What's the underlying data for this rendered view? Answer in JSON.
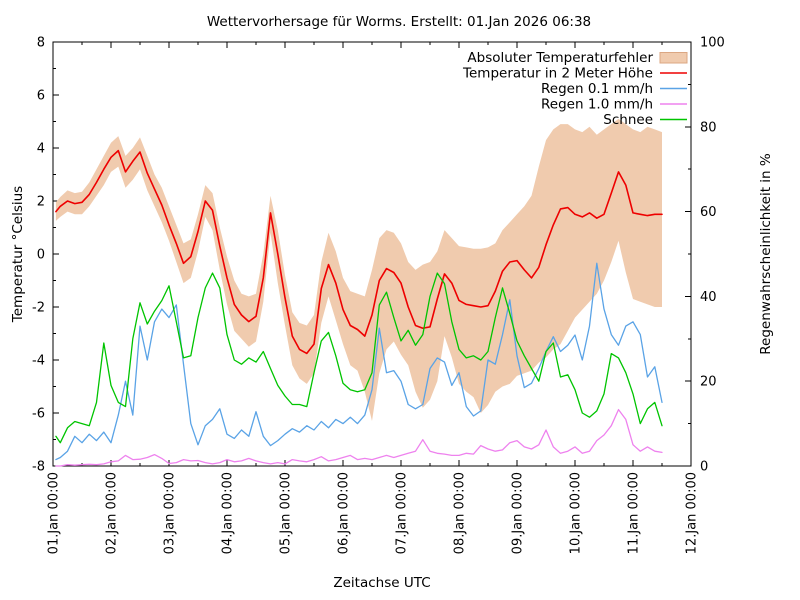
{
  "title": "Wettervorhersage für Worms. Erstellt: 01.Jan 2026 06:38",
  "chart_data": {
    "type": "line",
    "title": "Wettervorhersage für Worms. Erstellt: 01.Jan 2026 06:38",
    "xlabel": "Zeitachse UTC",
    "ylabel_left": "Temperatur °Celsius",
    "ylabel_right": "Regenwahrscheinlichkeit in %",
    "grid": false,
    "legend_position": "top-right-inside",
    "x_range_days": [
      0,
      11
    ],
    "x_tick_labels": [
      "01.Jan 00:00",
      "02.Jan 00:00",
      "03.Jan 00:00",
      "04.Jan 00:00",
      "05.Jan 00:00",
      "06.Jan 00:00",
      "07.Jan 00:00",
      "08.Jan 00:00",
      "09.Jan 00:00",
      "10.Jan 00:00",
      "11.Jan 00:00",
      "12.Jan 00:00"
    ],
    "x_minor_step_days": 0.5,
    "y_left_range": [
      -8,
      8
    ],
    "y_left_ticks": [
      -8,
      -6,
      -4,
      -2,
      0,
      2,
      4,
      6,
      8
    ],
    "y_left_minor_step": 1,
    "y_right_range": [
      0,
      100
    ],
    "y_right_ticks": [
      0,
      20,
      40,
      60,
      80,
      100
    ],
    "y_right_minor_step": 10,
    "x_days": [
      0.05,
      0.125,
      0.25,
      0.375,
      0.5,
      0.625,
      0.75,
      0.875,
      1,
      1.125,
      1.25,
      1.375,
      1.5,
      1.625,
      1.75,
      1.875,
      2,
      2.125,
      2.25,
      2.375,
      2.5,
      2.625,
      2.75,
      2.875,
      3,
      3.125,
      3.25,
      3.375,
      3.5,
      3.625,
      3.75,
      3.875,
      4,
      4.125,
      4.25,
      4.375,
      4.5,
      4.625,
      4.75,
      4.875,
      5,
      5.125,
      5.25,
      5.375,
      5.5,
      5.625,
      5.75,
      5.875,
      6,
      6.125,
      6.25,
      6.375,
      6.5,
      6.625,
      6.75,
      6.875,
      7,
      7.125,
      7.25,
      7.375,
      7.5,
      7.625,
      7.75,
      7.875,
      8,
      8.125,
      8.25,
      8.375,
      8.5,
      8.625,
      8.75,
      8.875,
      9,
      9.125,
      9.25,
      9.375,
      9.5,
      9.625,
      9.75,
      9.875,
      10,
      10.125,
      10.25,
      10.375,
      10.5
    ],
    "series": [
      {
        "name": "Absoluter Temperaturfehler",
        "kind": "band",
        "axis": "left",
        "color": "#f0cbae",
        "border_color": "#dba783",
        "upper": [
          1.95,
          2.15,
          2.4,
          2.3,
          2.35,
          2.7,
          3.2,
          3.7,
          4.2,
          4.45,
          3.7,
          4.0,
          4.4,
          3.7,
          3.0,
          2.5,
          1.8,
          1.1,
          0.4,
          0.55,
          1.5,
          2.6,
          2.3,
          1.0,
          -0.1,
          -1.0,
          -1.5,
          -1.6,
          -1.5,
          0.0,
          2.2,
          0.9,
          -0.8,
          -2.2,
          -2.6,
          -2.7,
          -2.3,
          -0.3,
          0.8,
          0.1,
          -0.9,
          -1.4,
          -1.5,
          -1.6,
          -0.6,
          0.6,
          0.9,
          0.8,
          0.4,
          -0.3,
          -0.6,
          -0.4,
          -0.3,
          0.1,
          0.9,
          0.6,
          0.3,
          0.25,
          0.2,
          0.2,
          0.25,
          0.4,
          0.9,
          1.2,
          1.5,
          1.8,
          2.2,
          3.3,
          4.3,
          4.7,
          4.9,
          4.9,
          4.7,
          4.6,
          4.8,
          4.5,
          4.7,
          4.9,
          5.1,
          4.9,
          4.7,
          4.6,
          4.8,
          4.7,
          4.6
        ],
        "lower": [
          1.25,
          1.4,
          1.6,
          1.5,
          1.5,
          1.8,
          2.2,
          2.6,
          3.1,
          3.3,
          2.5,
          2.8,
          3.2,
          2.4,
          1.8,
          1.2,
          0.5,
          -0.3,
          -1.1,
          -0.9,
          0.1,
          1.4,
          0.9,
          -0.6,
          -1.9,
          -2.9,
          -3.2,
          -3.5,
          -3.3,
          -1.8,
          0.8,
          -1.1,
          -2.7,
          -4.2,
          -4.7,
          -4.9,
          -4.5,
          -2.6,
          -1.6,
          -2.5,
          -3.4,
          -4.2,
          -4.4,
          -5.2,
          -6.3,
          -4.5,
          -3.6,
          -3.3,
          -3.8,
          -4.2,
          -5.2,
          -5.8,
          -5.5,
          -4.8,
          -3.1,
          -3.9,
          -4.9,
          -5.2,
          -5.4,
          -6.0,
          -5.7,
          -5.2,
          -5.0,
          -4.9,
          -4.6,
          -4.5,
          -4.4,
          -4.1,
          -3.9,
          -3.6,
          -3.4,
          -2.9,
          -2.4,
          -2.1,
          -1.8,
          -1.5,
          -1.0,
          -0.3,
          0.5,
          -0.7,
          -1.7,
          -1.8,
          -1.9,
          -2.0,
          -2.0
        ]
      },
      {
        "name": "Temperatur in 2 Meter Höhe",
        "kind": "line",
        "axis": "left",
        "color": "#ee0000",
        "width": 1.6,
        "values": [
          1.6,
          1.8,
          2.0,
          1.9,
          1.95,
          2.25,
          2.7,
          3.2,
          3.65,
          3.9,
          3.1,
          3.5,
          3.85,
          3.05,
          2.45,
          1.85,
          1.1,
          0.4,
          -0.35,
          -0.1,
          0.85,
          2.0,
          1.65,
          0.3,
          -0.9,
          -1.9,
          -2.3,
          -2.55,
          -2.35,
          -0.9,
          1.55,
          0.0,
          -1.65,
          -3.1,
          -3.6,
          -3.75,
          -3.4,
          -1.3,
          -0.4,
          -1.1,
          -2.1,
          -2.7,
          -2.85,
          -3.1,
          -2.3,
          -1.0,
          -0.55,
          -0.7,
          -1.1,
          -2.0,
          -2.7,
          -2.8,
          -2.75,
          -1.7,
          -0.75,
          -1.1,
          -1.75,
          -1.9,
          -1.95,
          -2.0,
          -1.95,
          -1.4,
          -0.65,
          -0.3,
          -0.25,
          -0.6,
          -0.9,
          -0.5,
          0.35,
          1.1,
          1.7,
          1.75,
          1.5,
          1.4,
          1.55,
          1.35,
          1.5,
          2.3,
          3.1,
          2.6,
          1.55,
          1.5,
          1.45,
          1.5,
          1.5
        ]
      },
      {
        "name": "Regen 0.1 mm/h",
        "kind": "line",
        "axis": "right",
        "color": "#5aa3e6",
        "width": 1.3,
        "values": [
          1.5,
          2,
          3.5,
          7,
          5.5,
          7.5,
          6,
          8,
          5.5,
          12,
          20,
          12,
          33,
          25,
          34,
          37,
          35,
          38,
          24,
          10,
          5,
          9.5,
          11,
          13.5,
          7.5,
          6.5,
          8.5,
          7,
          12.8,
          7,
          4.8,
          6,
          7.5,
          8.8,
          8,
          9.5,
          8.5,
          10.5,
          9,
          11,
          10,
          11.5,
          10,
          12,
          18,
          32.5,
          22,
          22.5,
          20,
          14.5,
          13.5,
          14.5,
          23,
          25.5,
          24.5,
          19,
          22,
          14,
          11.8,
          13,
          25,
          24,
          31,
          39.2,
          26,
          18.5,
          19.5,
          23,
          27,
          30.5,
          27,
          28.5,
          30.9,
          25,
          33,
          47.8,
          37,
          31,
          28.5,
          33,
          34,
          31,
          21,
          23.4,
          15
        ]
      },
      {
        "name": "Regen 1.0 mm/h",
        "kind": "line",
        "axis": "right",
        "color": "#ee82ee",
        "width": 1.3,
        "values": [
          0,
          0,
          0.3,
          0.2,
          0.3,
          0.4,
          0.3,
          0.5,
          1.0,
          1.2,
          2.5,
          1.5,
          1.6,
          2.0,
          2.7,
          1.8,
          0.6,
          0.8,
          1.5,
          1.2,
          1.3,
          0.8,
          0.5,
          0.8,
          1.5,
          1.0,
          1.2,
          1.8,
          1.2,
          0.8,
          0.5,
          0.8,
          0.5,
          1.5,
          1.2,
          1.0,
          1.5,
          2.2,
          1.2,
          1.5,
          2.0,
          2.5,
          1.5,
          1.8,
          1.5,
          2.0,
          2.5,
          2.0,
          2.5,
          3.0,
          3.5,
          6.2,
          3.5,
          3.0,
          2.8,
          2.5,
          2.5,
          3.0,
          2.8,
          4.8,
          4.0,
          3.5,
          3.8,
          5.5,
          6.0,
          4.5,
          4.0,
          5.0,
          8.5,
          4.5,
          3.0,
          3.5,
          4.5,
          3.0,
          3.5,
          6.0,
          7.3,
          9.5,
          13.3,
          11,
          5,
          3.5,
          4.5,
          3.5,
          3.2
        ]
      },
      {
        "name": "Schnee",
        "kind": "line",
        "axis": "right",
        "color": "#00c400",
        "width": 1.3,
        "values": [
          7,
          5.5,
          9,
          10.5,
          10,
          9.5,
          15,
          29,
          19,
          15,
          14,
          30,
          38.5,
          33.5,
          36.5,
          39,
          42.5,
          34,
          25.5,
          26,
          35,
          42,
          45.5,
          42,
          31,
          25,
          24,
          25.5,
          24.5,
          27,
          23,
          19,
          16.5,
          14.5,
          14.5,
          14,
          22,
          29.5,
          31.5,
          26,
          19.5,
          18,
          17.5,
          18,
          22,
          38,
          41,
          35,
          29.5,
          32,
          28.5,
          31,
          40,
          45.5,
          43,
          34,
          27.5,
          25.5,
          26,
          25,
          27,
          35,
          42,
          36,
          29.5,
          26,
          23,
          20,
          27,
          29,
          21,
          21.5,
          18,
          12.5,
          11.5,
          13,
          17,
          26.5,
          25.5,
          22,
          17,
          10,
          13.5,
          15,
          9.5
        ]
      }
    ]
  }
}
